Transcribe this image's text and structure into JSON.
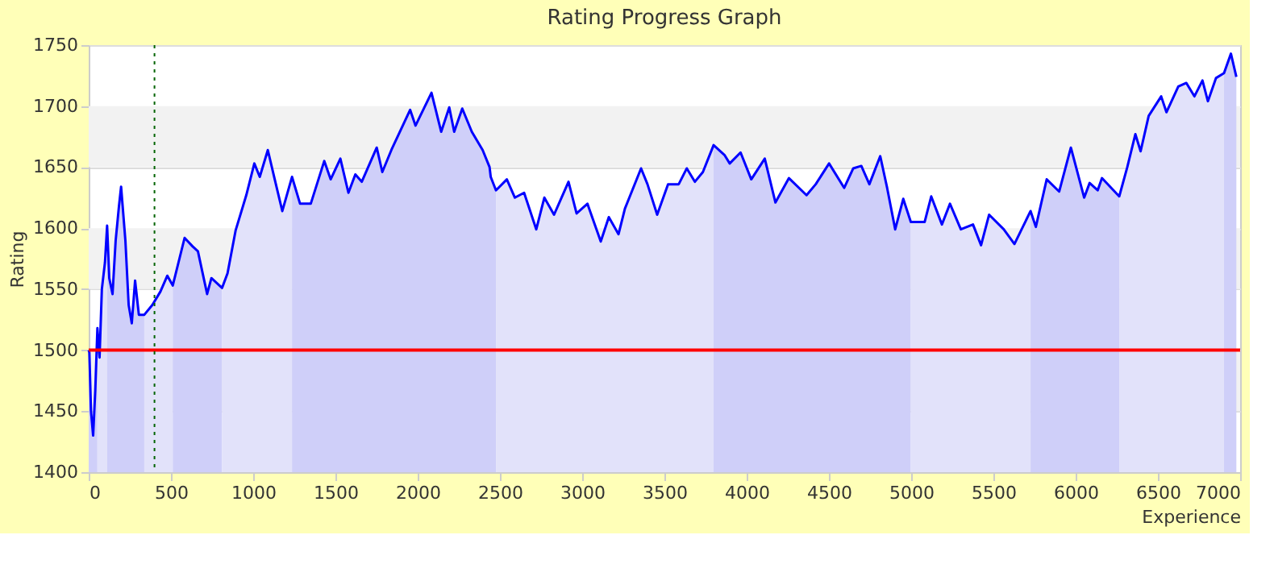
{
  "chart_data": {
    "type": "area",
    "title": "Rating Progress Graph",
    "xlabel": "Experience",
    "ylabel": "Rating",
    "xlim": [
      0,
      7000
    ],
    "xticks": [
      0,
      500,
      1000,
      1500,
      2000,
      2500,
      3000,
      3500,
      4000,
      4500,
      5000,
      5500,
      6000,
      6500,
      7000
    ],
    "ylim": [
      1400,
      1750
    ],
    "yticks": [
      1400,
      1450,
      1500,
      1550,
      1600,
      1650,
      1700,
      1750
    ],
    "grid": "y",
    "line_style": "solid",
    "series": [
      {
        "color": "#cfcff9",
        "x": [
          0,
          4,
          14,
          27,
          40,
          53
        ],
        "values": [
          1500,
          1498,
          1450,
          1430,
          1467,
          1518
        ]
      },
      {
        "color": "#e2e2fa",
        "x": [
          53,
          66,
          80,
          99,
          112
        ],
        "values": [
          1518,
          1494,
          1550,
          1572,
          1602
        ]
      },
      {
        "color": "#cfcff9",
        "x": [
          112,
          125,
          145,
          164,
          184,
          197,
          223,
          243,
          262,
          282,
          305,
          338
        ],
        "values": [
          1602,
          1559,
          1546,
          1590,
          1618,
          1634,
          1590,
          1537,
          1522,
          1557,
          1529,
          1529
        ]
      },
      {
        "color": "#e2e2fa",
        "x": [
          338,
          387,
          436,
          478,
          511
        ],
        "values": [
          1529,
          1537,
          1548,
          1561,
          1553
        ]
      },
      {
        "color": "#cfcff9",
        "x": [
          511,
          583,
          632,
          664,
          720,
          746,
          811
        ],
        "values": [
          1553,
          1592,
          1585,
          1581,
          1546,
          1559,
          1551
        ]
      },
      {
        "color": "#e2e2fa",
        "x": [
          811,
          844,
          893,
          958,
          1007,
          1040,
          1089,
          1131,
          1177,
          1236
        ],
        "values": [
          1551,
          1563,
          1598,
          1627,
          1653,
          1642,
          1664,
          1640,
          1614,
          1642
        ]
      },
      {
        "color": "#cfcff9",
        "x": [
          1236,
          1285,
          1350,
          1432,
          1471,
          1530,
          1579,
          1621,
          1660,
          1751,
          1785,
          1840,
          1954,
          1987,
          2084,
          2143,
          2192,
          2222,
          2271,
          2329,
          2395,
          2437,
          2444,
          2476
        ],
        "values": [
          1642,
          1620,
          1620,
          1655,
          1640,
          1657,
          1629,
          1644,
          1638,
          1666,
          1646,
          1664,
          1697,
          1684,
          1711,
          1679,
          1699,
          1679,
          1698,
          1679,
          1664,
          1650,
          1642,
          1631
        ]
      },
      {
        "color": "#e2e2fa",
        "x": [
          2476,
          2542,
          2591,
          2647,
          2721,
          2770,
          2829,
          2917,
          2966,
          3032,
          3113,
          3162,
          3221,
          3260,
          3358,
          3397,
          3456,
          3522,
          3587,
          3636,
          3685,
          3734,
          3799
        ],
        "values": [
          1631,
          1640,
          1625,
          1629,
          1599,
          1625,
          1611,
          1638,
          1612,
          1620,
          1589,
          1609,
          1595,
          1616,
          1649,
          1636,
          1611,
          1636,
          1636,
          1649,
          1638,
          1646,
          1668
        ]
      },
      {
        "color": "#cfcff9",
        "x": [
          3799,
          3865,
          3897,
          3963,
          4028,
          4110,
          4175,
          4257,
          4364,
          4420,
          4501,
          4593,
          4648,
          4697,
          4746,
          4812,
          4854,
          4903,
          4952,
          4998
        ],
        "values": [
          1668,
          1660,
          1653,
          1662,
          1640,
          1657,
          1621,
          1641,
          1627,
          1636,
          1653,
          1633,
          1649,
          1651,
          1636,
          1659,
          1633,
          1599,
          1624,
          1605
        ]
      },
      {
        "color": "#e2e2fa",
        "x": [
          4998,
          5082,
          5122,
          5187,
          5236,
          5302,
          5376,
          5425,
          5474,
          5563,
          5628,
          5726
        ],
        "values": [
          1605,
          1605,
          1626,
          1603,
          1620,
          1599,
          1603,
          1586,
          1611,
          1599,
          1587,
          1614
        ]
      },
      {
        "color": "#cfcff9",
        "x": [
          5726,
          5758,
          5824,
          5900,
          5971,
          6052,
          6085,
          6134,
          6160,
          6265
        ],
        "values": [
          1614,
          1601,
          1640,
          1630,
          1666,
          1625,
          1637,
          1631,
          1641,
          1626
        ]
      },
      {
        "color": "#e2e2fa",
        "x": [
          6265,
          6314,
          6363,
          6395,
          6444,
          6520,
          6552,
          6624,
          6673,
          6722,
          6771,
          6804,
          6853,
          6902
        ],
        "values": [
          1626,
          1650,
          1677,
          1663,
          1692,
          1708,
          1695,
          1716,
          1719,
          1708,
          1721,
          1704,
          1723,
          1727
        ]
      },
      {
        "color": "#cfcff9",
        "x": [
          6902,
          6944,
          6977
        ],
        "values": [
          1727,
          1743,
          1724
        ]
      },
      {
        "type": "line",
        "color": "#0000ff",
        "x": [
          0,
          4,
          14,
          27,
          40,
          53,
          66,
          80,
          99,
          112,
          125,
          145,
          164,
          184,
          197,
          223,
          243,
          262,
          282,
          305,
          338,
          387,
          436,
          478,
          511,
          583,
          632,
          664,
          720,
          746,
          811,
          844,
          893,
          958,
          1007,
          1040,
          1089,
          1131,
          1177,
          1236,
          1285,
          1350,
          1432,
          1471,
          1530,
          1579,
          1621,
          1660,
          1751,
          1785,
          1840,
          1954,
          1987,
          2084,
          2143,
          2192,
          2222,
          2271,
          2329,
          2395,
          2437,
          2444,
          2476,
          2542,
          2591,
          2647,
          2721,
          2770,
          2829,
          2917,
          2966,
          3032,
          3113,
          3162,
          3221,
          3260,
          3358,
          3397,
          3456,
          3522,
          3587,
          3636,
          3685,
          3734,
          3799,
          3865,
          3897,
          3963,
          4028,
          4110,
          4175,
          4257,
          4364,
          4420,
          4501,
          4593,
          4648,
          4697,
          4746,
          4812,
          4854,
          4903,
          4952,
          4998,
          5082,
          5122,
          5187,
          5236,
          5302,
          5376,
          5425,
          5474,
          5563,
          5628,
          5726,
          5758,
          5824,
          5900,
          5971,
          6052,
          6085,
          6134,
          6160,
          6265,
          6314,
          6363,
          6395,
          6444,
          6520,
          6552,
          6624,
          6673,
          6722,
          6771,
          6804,
          6853,
          6902,
          6944,
          6977
        ],
        "values": [
          1500,
          1498,
          1450,
          1430,
          1467,
          1518,
          1494,
          1550,
          1572,
          1602,
          1559,
          1546,
          1590,
          1618,
          1634,
          1590,
          1537,
          1522,
          1557,
          1529,
          1529,
          1537,
          1548,
          1561,
          1553,
          1592,
          1585,
          1581,
          1546,
          1559,
          1551,
          1563,
          1598,
          1627,
          1653,
          1642,
          1664,
          1640,
          1614,
          1642,
          1620,
          1620,
          1655,
          1640,
          1657,
          1629,
          1644,
          1638,
          1666,
          1646,
          1664,
          1697,
          1684,
          1711,
          1679,
          1699,
          1679,
          1698,
          1679,
          1664,
          1650,
          1642,
          1631,
          1640,
          1625,
          1629,
          1599,
          1625,
          1611,
          1638,
          1612,
          1620,
          1589,
          1609,
          1595,
          1616,
          1649,
          1636,
          1611,
          1636,
          1636,
          1649,
          1638,
          1646,
          1668,
          1660,
          1653,
          1662,
          1640,
          1657,
          1621,
          1641,
          1627,
          1636,
          1653,
          1633,
          1649,
          1651,
          1636,
          1659,
          1633,
          1599,
          1624,
          1605,
          1605,
          1626,
          1603,
          1620,
          1599,
          1603,
          1586,
          1611,
          1599,
          1587,
          1614,
          1601,
          1640,
          1630,
          1666,
          1625,
          1637,
          1631,
          1641,
          1626,
          1650,
          1677,
          1663,
          1692,
          1708,
          1695,
          1716,
          1719,
          1708,
          1721,
          1704,
          1723,
          1727,
          1743,
          1724
        ]
      }
    ],
    "ref_lines": [
      {
        "axis": "y",
        "value": 1500,
        "color": "#ff0000",
        "line_style": "solid"
      },
      {
        "axis": "x",
        "value": 400,
        "color": "#006400",
        "line_style": "dotted"
      }
    ]
  }
}
